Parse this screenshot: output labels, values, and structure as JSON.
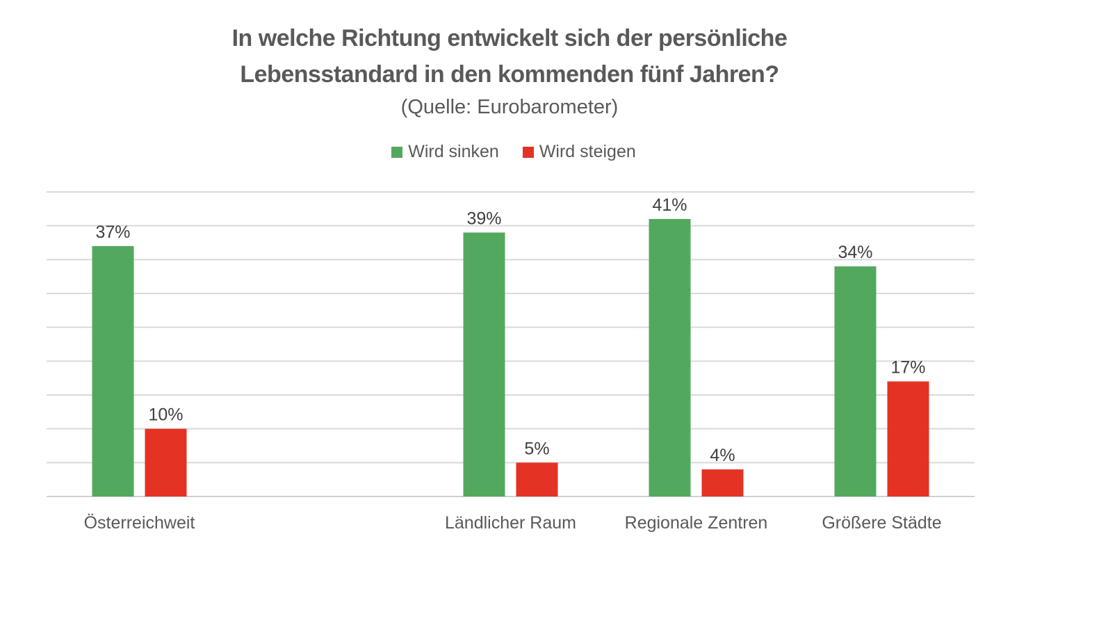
{
  "chart_data": {
    "type": "bar",
    "title": "In welche Richtung entwickelt sich der persönliche Lebensstandard in den kommenden fünf Jahren?",
    "title_lines": [
      "In welche Richtung entwickelt sich der persönliche",
      "Lebensstandard in den kommenden fünf Jahren?"
    ],
    "subtitle": "(Quelle: Eurobarometer)",
    "categories": [
      "Österreichweit",
      "",
      "Ländlicher Raum",
      "Regionale Zentren",
      "Größere Städte"
    ],
    "series": [
      {
        "name": "Wird sinken",
        "color": "#52a95e",
        "values": [
          37,
          null,
          39,
          41,
          34
        ]
      },
      {
        "name": "Wird steigen",
        "color": "#e43224",
        "values": [
          10,
          null,
          5,
          4,
          17
        ]
      }
    ],
    "value_suffix": "%",
    "xlabel": "",
    "ylabel": "",
    "ylim": [
      0,
      45
    ],
    "ytick_step": 5,
    "grid": true,
    "y_axis_labels_visible": false,
    "legend_position": "top"
  }
}
